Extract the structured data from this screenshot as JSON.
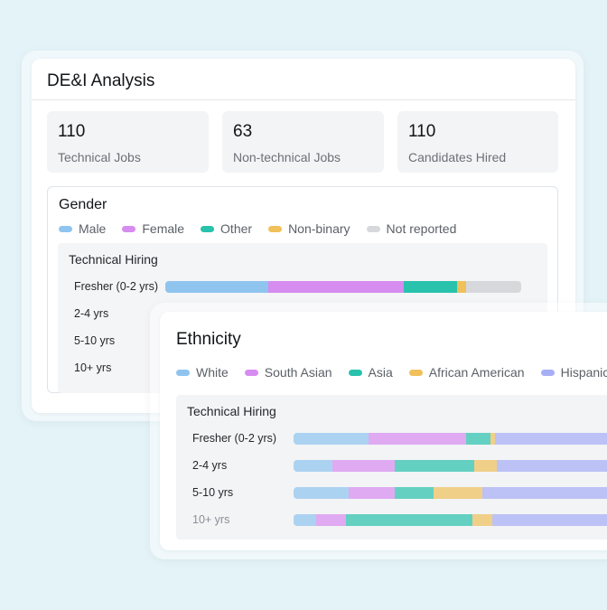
{
  "card1": {
    "title": "DE&I Analysis",
    "stats": [
      {
        "value": "110",
        "label": "Technical Jobs"
      },
      {
        "value": "63",
        "label": "Non-technical Jobs"
      },
      {
        "value": "110",
        "label": "Candidates Hired"
      }
    ]
  },
  "colors": {
    "blue": "#8fc4ef",
    "purple": "#d78cf0",
    "teal": "#29c2ac",
    "yellow": "#f0c05a",
    "grey": "#d6d8db",
    "indigo": "#a6aef5"
  },
  "chart_data": [
    {
      "type": "bar",
      "stacked": true,
      "orientation": "horizontal",
      "title": "Gender",
      "subtitle": "Technical Hiring",
      "legend_position": "top",
      "categories": [
        "Fresher (0-2 yrs)",
        "2-4 yrs",
        "5-10 yrs",
        "10+ yrs"
      ],
      "series": [
        {
          "name": "Male",
          "color": "#8fc4ef",
          "values": [
            29,
            null,
            null,
            null
          ]
        },
        {
          "name": "Female",
          "color": "#d78cf0",
          "values": [
            38,
            null,
            null,
            null
          ]
        },
        {
          "name": "Other",
          "color": "#29c2ac",
          "values": [
            15,
            null,
            null,
            null
          ]
        },
        {
          "name": "Non-binary",
          "color": "#f0c05a",
          "values": [
            2.5,
            null,
            null,
            null
          ]
        },
        {
          "name": "Not reported",
          "color": "#d6d8db",
          "values": [
            15.5,
            null,
            null,
            null
          ]
        }
      ]
    },
    {
      "type": "bar",
      "stacked": true,
      "orientation": "horizontal",
      "title": "Ethnicity",
      "subtitle": "Technical Hiring",
      "legend_position": "top",
      "categories": [
        "Fresher (0-2 yrs)",
        "2-4 yrs",
        "5-10 yrs",
        "10+ yrs"
      ],
      "series": [
        {
          "name": "White",
          "color": "#8fc4ef",
          "values": [
            23,
            12,
            17,
            7
          ]
        },
        {
          "name": "South Asian",
          "color": "#d78cf0",
          "values": [
            30,
            19,
            14,
            9
          ]
        },
        {
          "name": "Asia",
          "color": "#29c2ac",
          "values": [
            7.5,
            24.5,
            12,
            39
          ]
        },
        {
          "name": "African American",
          "color": "#f0c05a",
          "values": [
            1.5,
            7,
            15,
            6
          ]
        },
        {
          "name": "Hispanic",
          "color": "#a6aef5",
          "values": [
            38,
            37.5,
            42,
            39
          ]
        }
      ]
    }
  ]
}
